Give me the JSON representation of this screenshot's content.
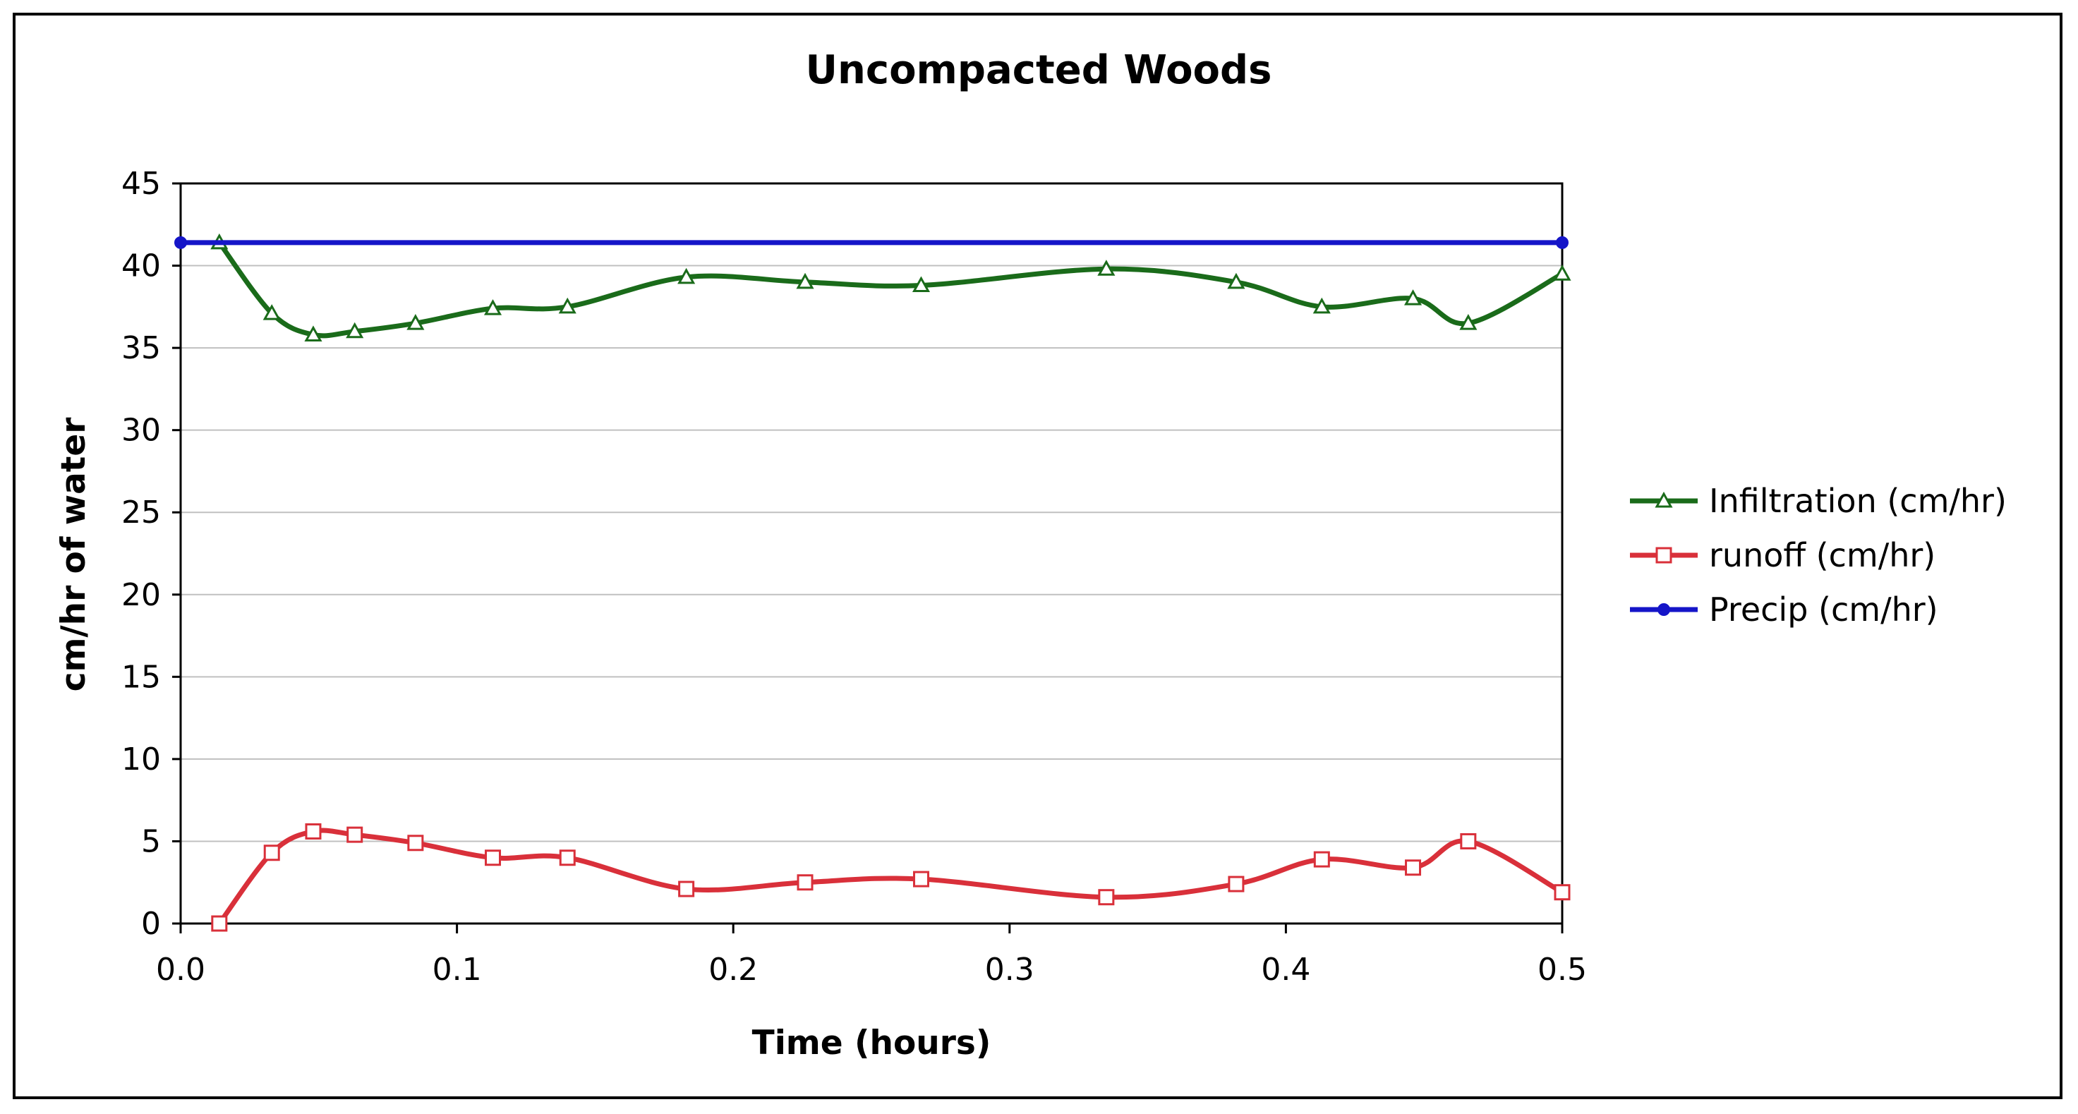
{
  "chart_data": {
    "type": "line",
    "title": "Uncompacted Woods",
    "xlabel": "Time (hours)",
    "ylabel": "cm/hr of water",
    "xlim": [
      0.0,
      0.5
    ],
    "ylim": [
      0,
      45
    ],
    "x_ticks": [
      "0.0",
      "0.1",
      "0.2",
      "0.3",
      "0.4",
      "0.5"
    ],
    "y_ticks": [
      "0",
      "5",
      "10",
      "15",
      "20",
      "25",
      "30",
      "35",
      "40",
      "45"
    ],
    "grid": "horizontal",
    "legend_position": "right",
    "series": [
      {
        "name": "Infiltration (cm/hr)",
        "color": "#1a6b1a",
        "marker": "triangle",
        "smooth": true,
        "points": [
          [
            0.014,
            41.4
          ],
          [
            0.033,
            37.1
          ],
          [
            0.048,
            35.8
          ],
          [
            0.063,
            36.0
          ],
          [
            0.085,
            36.5
          ],
          [
            0.113,
            37.4
          ],
          [
            0.14,
            37.5
          ],
          [
            0.183,
            39.3
          ],
          [
            0.226,
            39.0
          ],
          [
            0.268,
            38.8
          ],
          [
            0.335,
            39.8
          ],
          [
            0.382,
            39.0
          ],
          [
            0.413,
            37.5
          ],
          [
            0.446,
            38.0
          ],
          [
            0.466,
            36.5
          ],
          [
            0.5,
            39.5
          ]
        ]
      },
      {
        "name": "runoff (cm/hr)",
        "color": "#d9303a",
        "marker": "square",
        "smooth": true,
        "points": [
          [
            0.014,
            0.0
          ],
          [
            0.033,
            4.3
          ],
          [
            0.048,
            5.6
          ],
          [
            0.063,
            5.4
          ],
          [
            0.085,
            4.9
          ],
          [
            0.113,
            4.0
          ],
          [
            0.14,
            4.0
          ],
          [
            0.183,
            2.1
          ],
          [
            0.226,
            2.5
          ],
          [
            0.268,
            2.7
          ],
          [
            0.335,
            1.6
          ],
          [
            0.382,
            2.4
          ],
          [
            0.413,
            3.9
          ],
          [
            0.446,
            3.4
          ],
          [
            0.466,
            5.0
          ],
          [
            0.5,
            1.9
          ]
        ]
      },
      {
        "name": "Precip (cm/hr)",
        "color": "#1515c8",
        "marker": "circle",
        "smooth": false,
        "points": [
          [
            0.0,
            41.4
          ],
          [
            0.5,
            41.4
          ]
        ]
      }
    ]
  }
}
